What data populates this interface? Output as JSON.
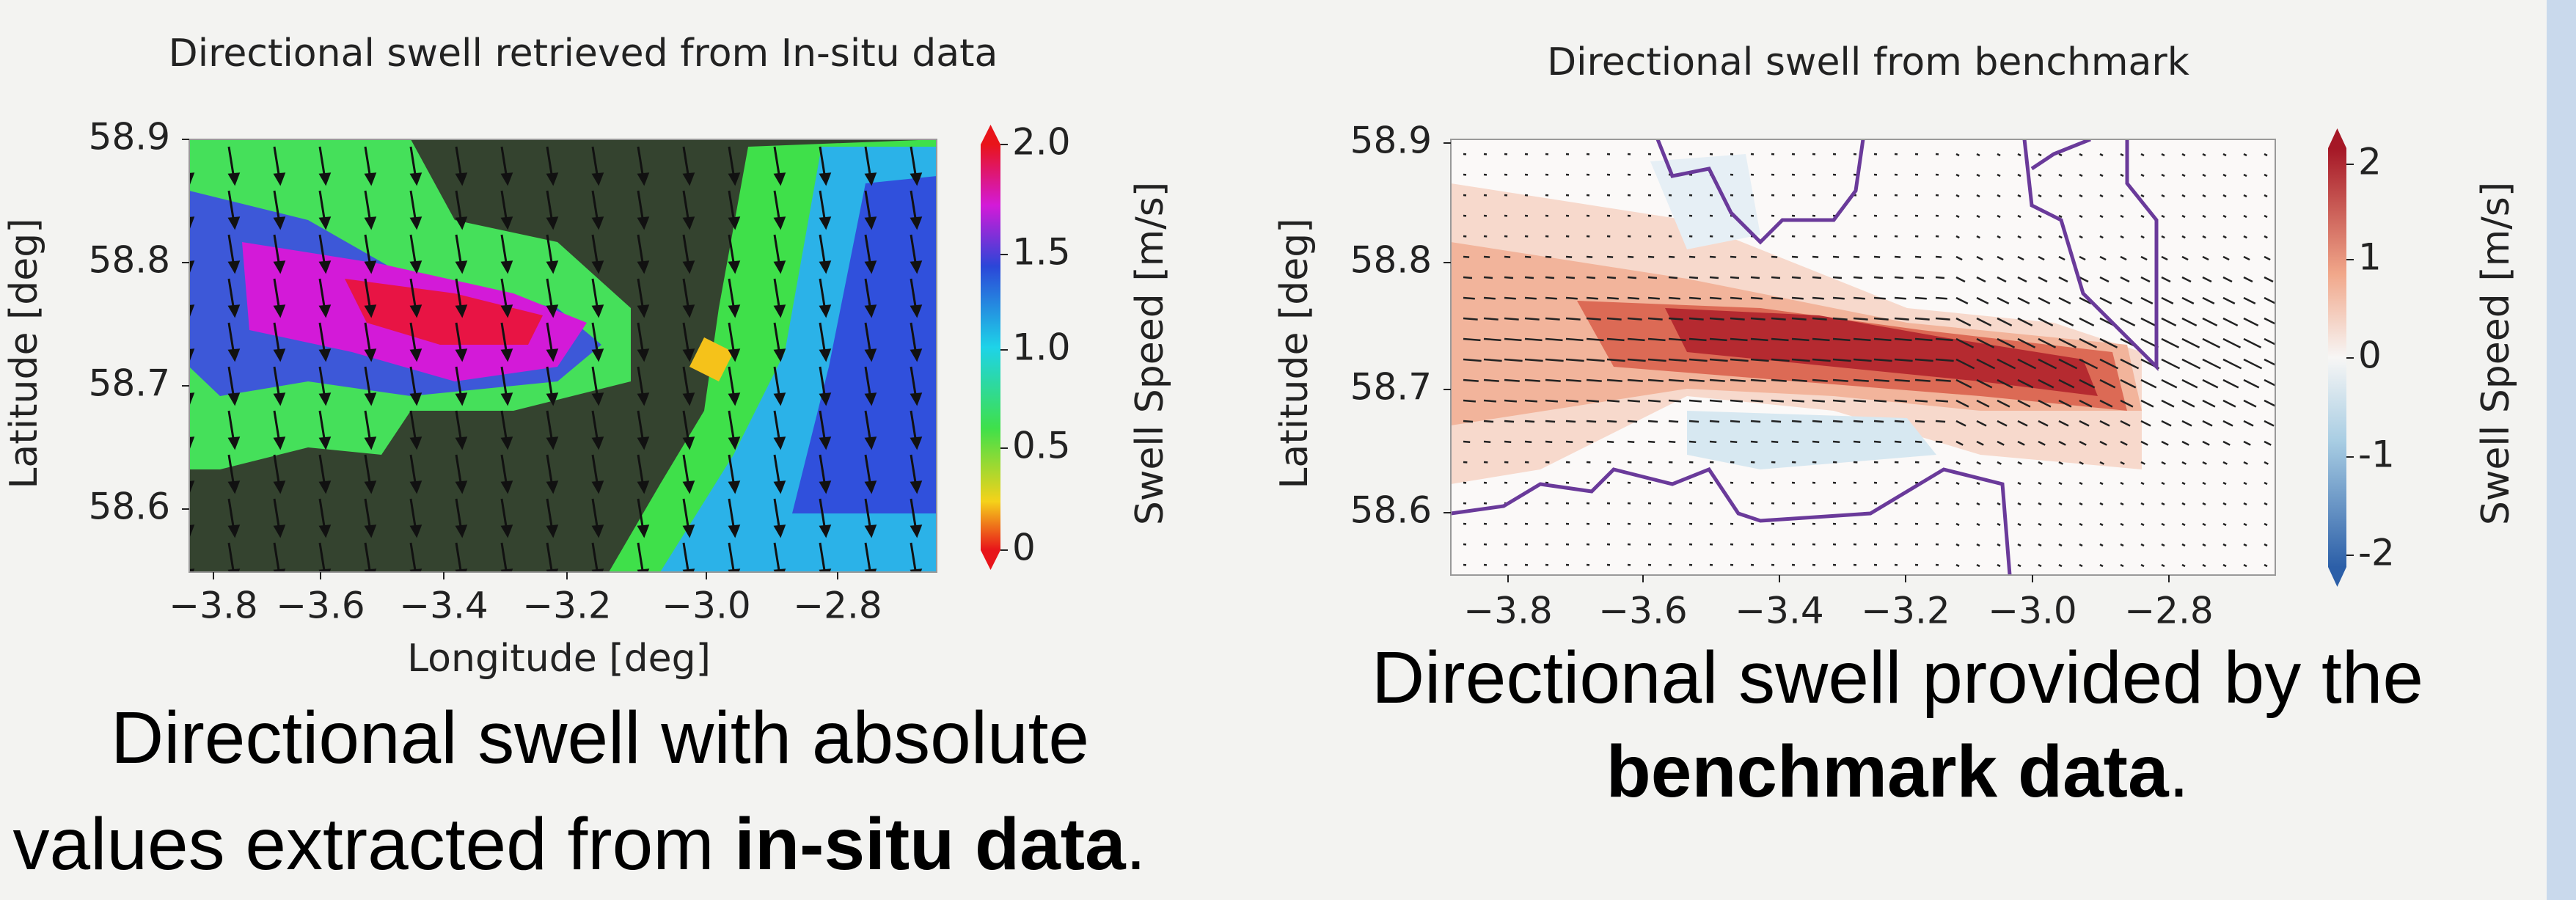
{
  "panels": [
    {
      "title": "Directional swell retrieved from In-situ data",
      "y_label": "Latitude [deg]",
      "x_label": "Longitude [deg]",
      "yticks": [
        "58.9",
        "58.8",
        "58.7",
        "58.6"
      ],
      "xticks": [
        "−3.8",
        "−3.6",
        "−3.4",
        "−3.2",
        "−3.0",
        "−2.8"
      ],
      "colorbar_label": "Swell Speed [m/s]",
      "colorbar_ticks": [
        "2.0",
        "1.5",
        "1.0",
        "0.5",
        "0"
      ],
      "caption": [
        [
          {
            "text": "Directional swell with absolute",
            "bold": false
          }
        ],
        [
          {
            "text": "values extracted from ",
            "bold": false
          },
          {
            "text": "in-situ data",
            "bold": true
          },
          {
            "text": ".",
            "bold": false
          }
        ]
      ]
    },
    {
      "title": "Directional swell from benchmark",
      "y_label": "Latitude [deg]",
      "yticks": [
        "58.9",
        "58.8",
        "58.7",
        "58.6"
      ],
      "xticks": [
        "−3.8",
        "−3.6",
        "−3.4",
        "−3.2",
        "−3.0",
        "−2.8"
      ],
      "colorbar_label": "Swell Speed [m/s]",
      "colorbar_ticks": [
        "2",
        "1",
        "0",
        "-1",
        "-2"
      ],
      "caption": [
        [
          {
            "text": "Directional swell provided by the",
            "bold": false
          }
        ],
        [
          {
            "text": "benchmark data",
            "bold": true
          },
          {
            "text": ".",
            "bold": false
          }
        ]
      ]
    }
  ]
}
